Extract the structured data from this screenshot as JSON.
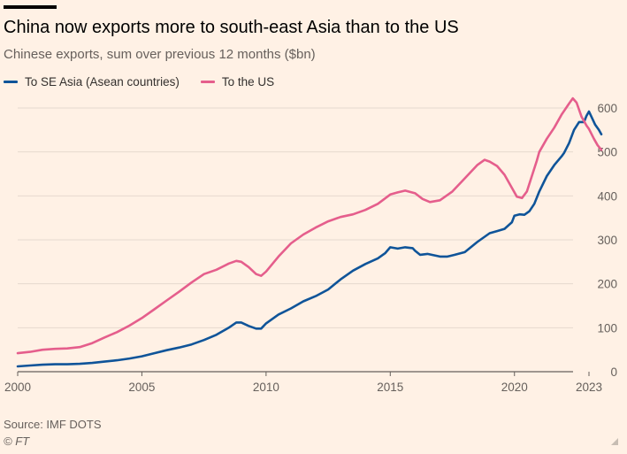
{
  "header": {
    "title": "China now exports more to south-east Asia than to the US",
    "subtitle": "Chinese exports, sum over previous 12 months ($bn)"
  },
  "legend": {
    "items": [
      {
        "label": "To SE Asia (Asean countries)",
        "color": "#0f5499"
      },
      {
        "label": "To the US",
        "color": "#e55e8c"
      }
    ]
  },
  "footer": {
    "source": "Source: IMF DOTS",
    "copyright": "© FT"
  },
  "chart_data": {
    "type": "line",
    "xlim": [
      2000,
      2023
    ],
    "ylim": [
      0,
      600
    ],
    "x_ticks": [
      2000,
      2005,
      2010,
      2015,
      2020,
      2023
    ],
    "y_ticks": [
      0,
      100,
      200,
      300,
      400,
      500,
      600
    ],
    "y_axis_position": "right",
    "grid": "horizontal",
    "legend_position": "top-left",
    "series": [
      {
        "name": "To SE Asia (Asean countries)",
        "color": "#0f5499",
        "points": [
          [
            2000.0,
            12
          ],
          [
            2000.5,
            14
          ],
          [
            2001.0,
            16
          ],
          [
            2001.5,
            17
          ],
          [
            2002.0,
            17
          ],
          [
            2002.5,
            18
          ],
          [
            2003.0,
            20
          ],
          [
            2003.5,
            23
          ],
          [
            2004.0,
            26
          ],
          [
            2004.5,
            30
          ],
          [
            2005.0,
            35
          ],
          [
            2005.5,
            42
          ],
          [
            2006.0,
            49
          ],
          [
            2006.5,
            55
          ],
          [
            2007.0,
            62
          ],
          [
            2007.5,
            72
          ],
          [
            2008.0,
            84
          ],
          [
            2008.5,
            100
          ],
          [
            2008.8,
            112
          ],
          [
            2009.0,
            112
          ],
          [
            2009.3,
            104
          ],
          [
            2009.6,
            98
          ],
          [
            2009.8,
            98
          ],
          [
            2010.0,
            110
          ],
          [
            2010.5,
            130
          ],
          [
            2011.0,
            144
          ],
          [
            2011.5,
            160
          ],
          [
            2012.0,
            172
          ],
          [
            2012.5,
            187
          ],
          [
            2013.0,
            210
          ],
          [
            2013.5,
            230
          ],
          [
            2014.0,
            245
          ],
          [
            2014.5,
            258
          ],
          [
            2014.8,
            270
          ],
          [
            2015.0,
            283
          ],
          [
            2015.3,
            280
          ],
          [
            2015.6,
            283
          ],
          [
            2015.9,
            281
          ],
          [
            2016.0,
            275
          ],
          [
            2016.2,
            266
          ],
          [
            2016.5,
            268
          ],
          [
            2017.0,
            262
          ],
          [
            2017.3,
            262
          ],
          [
            2017.6,
            266
          ],
          [
            2018.0,
            272
          ],
          [
            2018.5,
            295
          ],
          [
            2019.0,
            315
          ],
          [
            2019.3,
            320
          ],
          [
            2019.6,
            325
          ],
          [
            2019.9,
            340
          ],
          [
            2020.0,
            355
          ],
          [
            2020.2,
            358
          ],
          [
            2020.4,
            357
          ],
          [
            2020.6,
            365
          ],
          [
            2020.8,
            382
          ],
          [
            2021.0,
            410
          ],
          [
            2021.3,
            445
          ],
          [
            2021.6,
            470
          ],
          [
            2021.9,
            490
          ],
          [
            2022.0,
            498
          ],
          [
            2022.2,
            520
          ],
          [
            2022.4,
            550
          ],
          [
            2022.6,
            568
          ],
          [
            2022.8,
            568
          ],
          [
            2022.9,
            582
          ],
          [
            2023.0,
            592
          ],
          [
            2023.1,
            580
          ],
          [
            2023.25,
            562
          ],
          [
            2023.4,
            550
          ],
          [
            2023.5,
            540
          ]
        ]
      },
      {
        "name": "To the US",
        "color": "#e55e8c",
        "points": [
          [
            2000.0,
            42
          ],
          [
            2000.5,
            45
          ],
          [
            2001.0,
            50
          ],
          [
            2001.5,
            52
          ],
          [
            2002.0,
            53
          ],
          [
            2002.5,
            56
          ],
          [
            2003.0,
            65
          ],
          [
            2003.5,
            78
          ],
          [
            2004.0,
            90
          ],
          [
            2004.5,
            105
          ],
          [
            2005.0,
            122
          ],
          [
            2005.5,
            142
          ],
          [
            2006.0,
            162
          ],
          [
            2006.5,
            182
          ],
          [
            2007.0,
            203
          ],
          [
            2007.5,
            222
          ],
          [
            2008.0,
            232
          ],
          [
            2008.5,
            246
          ],
          [
            2008.8,
            252
          ],
          [
            2009.0,
            250
          ],
          [
            2009.3,
            238
          ],
          [
            2009.6,
            222
          ],
          [
            2009.8,
            218
          ],
          [
            2010.0,
            228
          ],
          [
            2010.5,
            262
          ],
          [
            2011.0,
            292
          ],
          [
            2011.5,
            312
          ],
          [
            2012.0,
            328
          ],
          [
            2012.5,
            342
          ],
          [
            2013.0,
            352
          ],
          [
            2013.5,
            358
          ],
          [
            2014.0,
            368
          ],
          [
            2014.5,
            382
          ],
          [
            2015.0,
            403
          ],
          [
            2015.3,
            408
          ],
          [
            2015.6,
            412
          ],
          [
            2016.0,
            406
          ],
          [
            2016.3,
            393
          ],
          [
            2016.6,
            386
          ],
          [
            2017.0,
            390
          ],
          [
            2017.5,
            410
          ],
          [
            2018.0,
            440
          ],
          [
            2018.5,
            470
          ],
          [
            2018.8,
            482
          ],
          [
            2019.0,
            478
          ],
          [
            2019.3,
            468
          ],
          [
            2019.6,
            448
          ],
          [
            2019.9,
            418
          ],
          [
            2020.1,
            398
          ],
          [
            2020.3,
            395
          ],
          [
            2020.5,
            410
          ],
          [
            2020.7,
            445
          ],
          [
            2020.9,
            480
          ],
          [
            2021.0,
            500
          ],
          [
            2021.3,
            530
          ],
          [
            2021.6,
            555
          ],
          [
            2021.9,
            585
          ],
          [
            2022.2,
            610
          ],
          [
            2022.35,
            622
          ],
          [
            2022.5,
            612
          ],
          [
            2022.7,
            580
          ],
          [
            2022.9,
            560
          ],
          [
            2023.0,
            552
          ],
          [
            2023.2,
            530
          ],
          [
            2023.35,
            515
          ],
          [
            2023.5,
            505
          ]
        ]
      }
    ]
  }
}
